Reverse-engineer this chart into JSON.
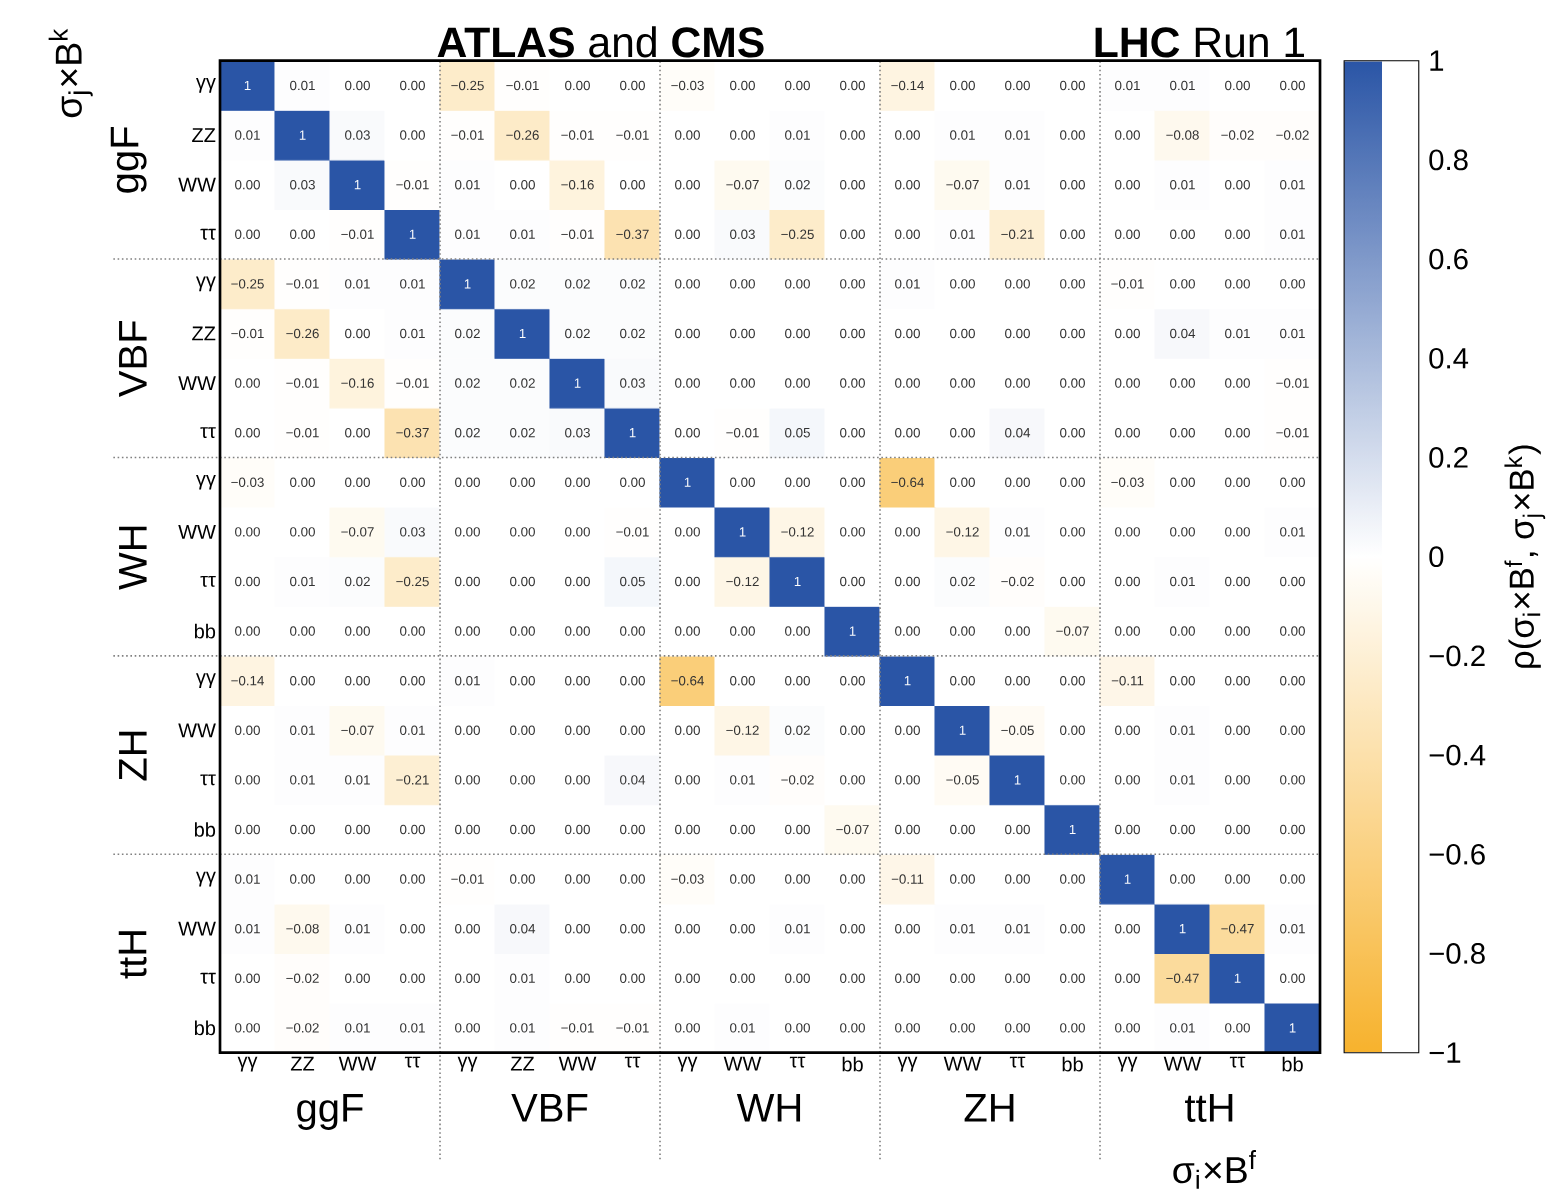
{
  "chart_data": {
    "type": "heatmap",
    "title": "**ATLAS** and **CMS**",
    "subtitle": "**LHC** Run 1",
    "xlabel": "σ$_{i}$×B$^{f}$",
    "ylabel": "σ$_{j}$×B$^{k}$",
    "clabel": "ρ(σ$_{i}$×B$^{f}$, σ$_{j}$×B$^{k}$)",
    "categories": [
      "γγ",
      "ZZ",
      "WW",
      "ττ",
      "γγ",
      "ZZ",
      "WW",
      "ττ",
      "γγ",
      "WW",
      "ττ",
      "bb",
      "γγ",
      "WW",
      "ττ",
      "bb",
      "γγ",
      "WW",
      "ττ",
      "bb"
    ],
    "y_categories": [
      "γγ",
      "ZZ",
      "WW",
      "ττ",
      "γγ",
      "ZZ",
      "WW",
      "ττ",
      "γγ",
      "WW",
      "ττ",
      "bb",
      "γγ",
      "WW",
      "ττ",
      "bb",
      "γγ",
      "WW",
      "ττ",
      "bb"
    ],
    "annotations": [
      "ggF",
      "VBF",
      "WH",
      "ZH",
      "ttH",
      "ggF",
      "VBF",
      "WH",
      "ZH",
      "ttH"
    ],
    "clim": [
      -1,
      1
    ],
    "cticks": [
      {
        "value": -1,
        "label": "−1"
      },
      {
        "value": -0.8,
        "label": "−0.8"
      },
      {
        "value": -0.6,
        "label": "−0.6"
      },
      {
        "value": -0.4,
        "label": "−0.4"
      },
      {
        "value": -0.2,
        "label": "−0.2"
      },
      0,
      0.2,
      0.4,
      0.6,
      0.8,
      1
    ],
    "cells": [
      [
        1,
        0.01,
        0.0,
        0.0,
        -0.25,
        -0.01,
        0.0,
        0.0,
        -0.03,
        0.0,
        0.0,
        0.0,
        -0.14,
        0.0,
        0.0,
        0.0,
        0.01,
        0.01,
        0.0,
        0.0
      ],
      [
        0.01,
        1,
        0.03,
        0.0,
        -0.01,
        -0.26,
        -0.01,
        -0.01,
        0.0,
        0.0,
        0.01,
        0.0,
        0.0,
        0.01,
        0.01,
        0.0,
        0.0,
        -0.08,
        -0.02,
        -0.02
      ],
      [
        0.0,
        0.03,
        1,
        -0.01,
        0.01,
        0.0,
        -0.16,
        0.0,
        0.0,
        -0.07,
        0.02,
        0.0,
        0.0,
        -0.07,
        0.01,
        0.0,
        0.0,
        0.01,
        0.0,
        0.01
      ],
      [
        0.0,
        0.0,
        -0.01,
        1,
        0.01,
        0.01,
        -0.01,
        -0.37,
        0.0,
        0.03,
        -0.25,
        0.0,
        0.0,
        0.01,
        -0.21,
        0.0,
        0.0,
        0.0,
        0.0,
        0.01
      ],
      [
        -0.25,
        -0.01,
        0.01,
        0.01,
        1,
        0.02,
        0.02,
        0.02,
        0.0,
        0.0,
        0.0,
        0.0,
        0.01,
        0.0,
        0.0,
        0.0,
        -0.01,
        0.0,
        0.0,
        0.0
      ],
      [
        -0.01,
        -0.26,
        0.0,
        0.01,
        0.02,
        1,
        0.02,
        0.02,
        0.0,
        0.0,
        0.0,
        0.0,
        0.0,
        0.0,
        0.0,
        0.0,
        0.0,
        0.04,
        0.01,
        0.01
      ],
      [
        0.0,
        -0.01,
        -0.16,
        -0.01,
        0.02,
        0.02,
        1,
        0.03,
        0.0,
        0.0,
        0.0,
        0.0,
        0.0,
        0.0,
        0.0,
        0.0,
        0.0,
        0.0,
        0.0,
        -0.01
      ],
      [
        0.0,
        -0.01,
        0.0,
        -0.37,
        0.02,
        0.02,
        0.03,
        1,
        0.0,
        -0.01,
        0.05,
        0.0,
        0.0,
        0.0,
        0.04,
        0.0,
        0.0,
        0.0,
        0.0,
        -0.01
      ],
      [
        -0.03,
        0.0,
        0.0,
        0.0,
        0.0,
        0.0,
        0.0,
        0.0,
        1,
        0.0,
        0.0,
        0.0,
        -0.64,
        0.0,
        0.0,
        0.0,
        -0.03,
        0.0,
        0.0,
        0.0
      ],
      [
        0.0,
        0.0,
        -0.07,
        0.03,
        0.0,
        0.0,
        0.0,
        -0.01,
        0.0,
        1,
        -0.12,
        0.0,
        0.0,
        -0.12,
        0.01,
        0.0,
        0.0,
        0.0,
        0.0,
        0.01
      ],
      [
        0.0,
        0.01,
        0.02,
        -0.25,
        0.0,
        0.0,
        0.0,
        0.05,
        0.0,
        -0.12,
        1,
        0.0,
        0.0,
        0.02,
        -0.02,
        0.0,
        0.0,
        0.01,
        0.0,
        0.0
      ],
      [
        0.0,
        0.0,
        0.0,
        0.0,
        0.0,
        0.0,
        0.0,
        0.0,
        0.0,
        0.0,
        0.0,
        1,
        0.0,
        0.0,
        0.0,
        -0.07,
        0.0,
        0.0,
        0.0,
        0.0
      ],
      [
        -0.14,
        0.0,
        0.0,
        0.0,
        0.01,
        0.0,
        0.0,
        0.0,
        -0.64,
        0.0,
        0.0,
        0.0,
        1,
        0.0,
        0.0,
        0.0,
        -0.11,
        0.0,
        0.0,
        0.0
      ],
      [
        0.0,
        0.01,
        -0.07,
        0.01,
        0.0,
        0.0,
        0.0,
        0.0,
        0.0,
        -0.12,
        0.02,
        0.0,
        0.0,
        1,
        -0.05,
        0.0,
        0.0,
        0.01,
        0.0,
        0.0
      ],
      [
        0.0,
        0.01,
        0.01,
        -0.21,
        0.0,
        0.0,
        0.0,
        0.04,
        0.0,
        0.01,
        -0.02,
        0.0,
        0.0,
        -0.05,
        1,
        0.0,
        0.0,
        0.01,
        0.0,
        0.0
      ],
      [
        0.0,
        0.0,
        0.0,
        0.0,
        0.0,
        0.0,
        0.0,
        0.0,
        0.0,
        0.0,
        0.0,
        -0.07,
        0.0,
        0.0,
        0.0,
        1,
        0.0,
        0.0,
        0.0,
        0.0
      ],
      [
        0.01,
        0.0,
        0.0,
        0.0,
        -0.01,
        0.0,
        0.0,
        0.0,
        -0.03,
        0.0,
        0.0,
        0.0,
        -0.11,
        0.0,
        0.0,
        0.0,
        1,
        0.0,
        0.0,
        0.0
      ],
      [
        0.01,
        -0.08,
        0.01,
        0.0,
        0.0,
        0.04,
        0.0,
        0.0,
        0.0,
        0.0,
        0.01,
        0.0,
        0.0,
        0.01,
        0.01,
        0.0,
        0.0,
        1,
        -0.47,
        0.01
      ],
      [
        0.0,
        -0.02,
        0.0,
        0.0,
        0.0,
        0.01,
        0.0,
        0.0,
        0.0,
        0.0,
        0.0,
        0.0,
        0.0,
        0.0,
        0.0,
        0.0,
        0.0,
        -0.47,
        1,
        0.0
      ],
      [
        0.0,
        -0.02,
        0.01,
        0.01,
        0.0,
        0.01,
        -0.01,
        -0.01,
        0.0,
        0.01,
        0.0,
        0.0,
        0.0,
        0.0,
        0.0,
        0.0,
        0.0,
        0.01,
        0.0,
        1
      ]
    ],
    "cell_labels": [
      [
        "1",
        "0.01",
        "0.00",
        "0.00",
        "−0.25",
        "−0.01",
        "0.00",
        "0.00",
        "−0.03",
        "0.00",
        "0.00",
        "0.00",
        "−0.14",
        "0.00",
        "0.00",
        "0.00",
        "0.01",
        "0.01",
        "0.00",
        "0.00"
      ],
      [
        "0.01",
        "1",
        "0.03",
        "0.00",
        "−0.01",
        "−0.26",
        "−0.01",
        "−0.01",
        "0.00",
        "0.00",
        "0.01",
        "0.00",
        "0.00",
        "0.01",
        "0.01",
        "0.00",
        "0.00",
        "−0.08",
        "−0.02",
        "−0.02"
      ],
      [
        "0.00",
        "0.03",
        "1",
        "−0.01",
        "0.01",
        "0.00",
        "−0.16",
        "0.00",
        "0.00",
        "−0.07",
        "0.02",
        "0.00",
        "0.00",
        "−0.07",
        "0.01",
        "0.00",
        "0.00",
        "0.01",
        "0.00",
        "0.01"
      ],
      [
        "0.00",
        "0.00",
        "−0.01",
        "1",
        "0.01",
        "0.01",
        "−0.01",
        "−0.37",
        "0.00",
        "0.03",
        "−0.25",
        "0.00",
        "0.00",
        "0.01",
        "−0.21",
        "0.00",
        "0.00",
        "0.00",
        "0.00",
        "0.01"
      ],
      [
        "−0.25",
        "−0.01",
        "0.01",
        "0.01",
        "1",
        "0.02",
        "0.02",
        "0.02",
        "0.00",
        "0.00",
        "0.00",
        "0.00",
        "0.01",
        "0.00",
        "0.00",
        "0.00",
        "−0.01",
        "0.00",
        "0.00",
        "0.00"
      ],
      [
        "−0.01",
        "−0.26",
        "0.00",
        "0.01",
        "0.02",
        "1",
        "0.02",
        "0.02",
        "0.00",
        "0.00",
        "0.00",
        "0.00",
        "0.00",
        "0.00",
        "0.00",
        "0.00",
        "0.00",
        "0.04",
        "0.01",
        "0.01"
      ],
      [
        "0.00",
        "−0.01",
        "−0.16",
        "−0.01",
        "0.02",
        "0.02",
        "1",
        "0.03",
        "0.00",
        "0.00",
        "0.00",
        "0.00",
        "0.00",
        "0.00",
        "0.00",
        "0.00",
        "0.00",
        "0.00",
        "0.00",
        "−0.01"
      ],
      [
        "0.00",
        "−0.01",
        "0.00",
        "−0.37",
        "0.02",
        "0.02",
        "0.03",
        "1",
        "0.00",
        "−0.01",
        "0.05",
        "0.00",
        "0.00",
        "0.00",
        "0.04",
        "0.00",
        "0.00",
        "0.00",
        "0.00",
        "−0.01"
      ],
      [
        "−0.03",
        "0.00",
        "0.00",
        "0.00",
        "0.00",
        "0.00",
        "0.00",
        "0.00",
        "1",
        "0.00",
        "0.00",
        "0.00",
        "−0.64",
        "0.00",
        "0.00",
        "0.00",
        "−0.03",
        "0.00",
        "0.00",
        "0.00"
      ],
      [
        "0.00",
        "0.00",
        "−0.07",
        "0.03",
        "0.00",
        "0.00",
        "0.00",
        "−0.01",
        "0.00",
        "1",
        "−0.12",
        "0.00",
        "0.00",
        "−0.12",
        "0.01",
        "0.00",
        "0.00",
        "0.00",
        "0.00",
        "0.01"
      ],
      [
        "0.00",
        "0.01",
        "0.02",
        "−0.25",
        "0.00",
        "0.00",
        "0.00",
        "0.05",
        "0.00",
        "−0.12",
        "1",
        "0.00",
        "0.00",
        "0.02",
        "−0.02",
        "0.00",
        "0.00",
        "0.01",
        "0.00",
        "0.00"
      ],
      [
        "0.00",
        "0.00",
        "0.00",
        "0.00",
        "0.00",
        "0.00",
        "0.00",
        "0.00",
        "0.00",
        "0.00",
        "0.00",
        "1",
        "0.00",
        "0.00",
        "0.00",
        "−0.07",
        "0.00",
        "0.00",
        "0.00",
        "0.00"
      ],
      [
        "−0.14",
        "0.00",
        "0.00",
        "0.00",
        "0.01",
        "0.00",
        "0.00",
        "0.00",
        "−0.64",
        "0.00",
        "0.00",
        "0.00",
        "1",
        "0.00",
        "0.00",
        "0.00",
        "−0.11",
        "0.00",
        "0.00",
        "0.00"
      ],
      [
        "0.00",
        "0.01",
        "−0.07",
        "0.01",
        "0.00",
        "0.00",
        "0.00",
        "0.00",
        "0.00",
        "−0.12",
        "0.02",
        "0.00",
        "0.00",
        "1",
        "−0.05",
        "0.00",
        "0.00",
        "0.01",
        "0.00",
        "0.00"
      ],
      [
        "0.00",
        "0.01",
        "0.01",
        "−0.21",
        "0.00",
        "0.00",
        "0.00",
        "0.04",
        "0.00",
        "0.01",
        "−0.02",
        "0.00",
        "0.00",
        "−0.05",
        "1",
        "0.00",
        "0.00",
        "0.01",
        "0.00",
        "0.00"
      ],
      [
        "0.00",
        "0.00",
        "0.00",
        "0.00",
        "0.00",
        "0.00",
        "0.00",
        "0.00",
        "0.00",
        "0.00",
        "0.00",
        "−0.07",
        "0.00",
        "0.00",
        "0.00",
        "1",
        "0.00",
        "0.00",
        "0.00",
        "0.00"
      ],
      [
        "0.01",
        "0.00",
        "0.00",
        "0.00",
        "−0.01",
        "0.00",
        "0.00",
        "0.00",
        "−0.03",
        "0.00",
        "0.00",
        "0.00",
        "−0.11",
        "0.00",
        "0.00",
        "0.00",
        "1",
        "0.00",
        "0.00",
        "0.00"
      ],
      [
        "0.01",
        "−0.08",
        "0.01",
        "0.00",
        "0.00",
        "0.04",
        "0.00",
        "0.00",
        "0.00",
        "0.00",
        "0.01",
        "0.00",
        "0.00",
        "0.01",
        "0.01",
        "0.00",
        "0.00",
        "1",
        "−0.47",
        "0.01"
      ],
      [
        "0.00",
        "−0.02",
        "0.00",
        "0.00",
        "0.00",
        "0.01",
        "0.00",
        "0.00",
        "0.00",
        "0.00",
        "0.00",
        "0.00",
        "0.00",
        "0.00",
        "0.00",
        "0.00",
        "0.00",
        "−0.47",
        "1",
        "0.00"
      ],
      [
        "0.00",
        "−0.02",
        "0.01",
        "0.01",
        "0.00",
        "0.01",
        "−0.01",
        "−0.01",
        "0.00",
        "0.01",
        "0.00",
        "0.00",
        "0.00",
        "0.00",
        "0.00",
        "0.00",
        "0.00",
        "0.01",
        "0.00",
        "1"
      ]
    ]
  }
}
